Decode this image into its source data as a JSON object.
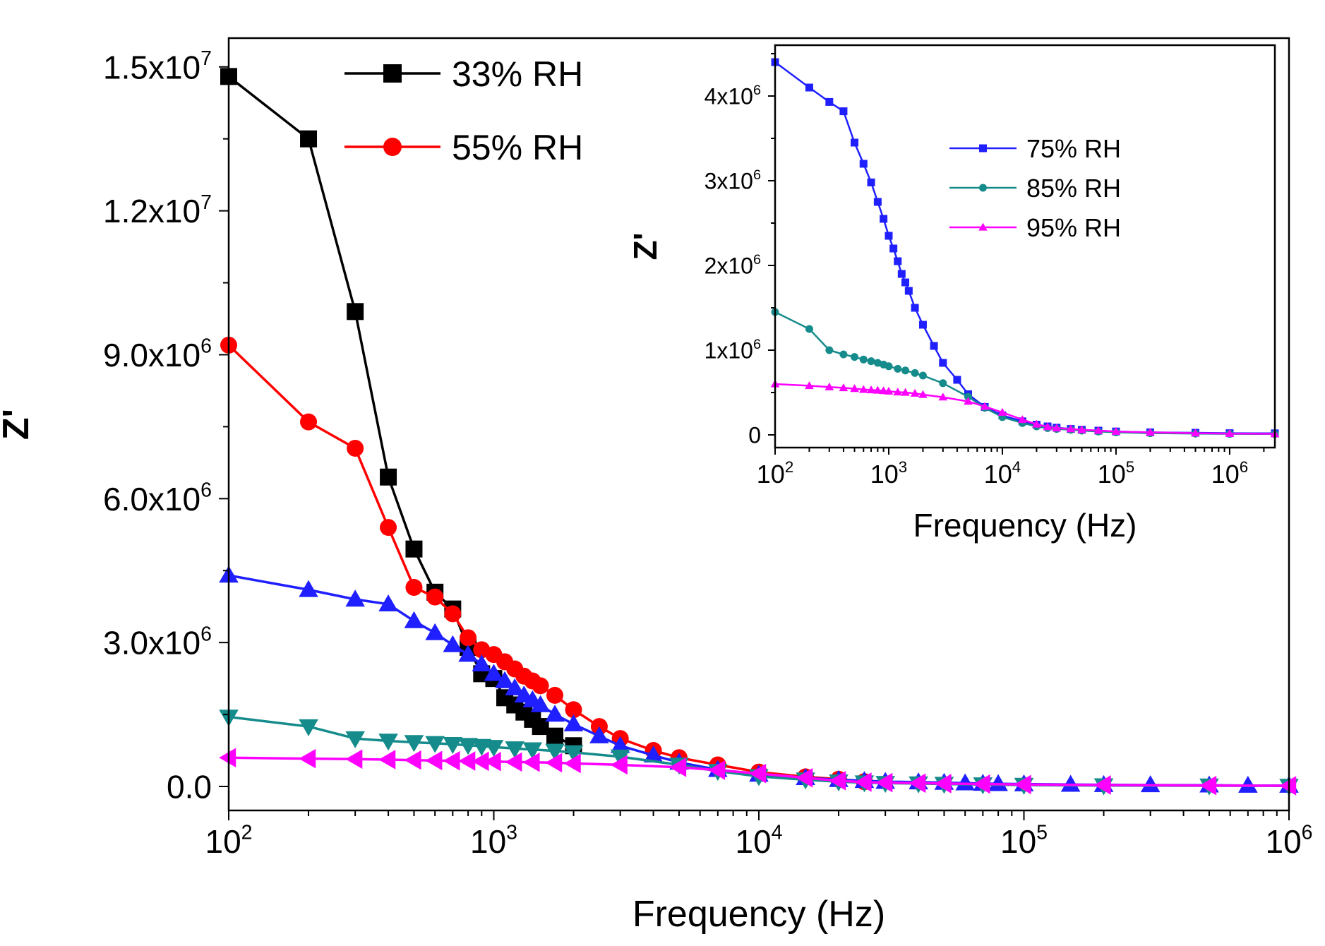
{
  "chart_data": [
    {
      "id": "main",
      "type": "line",
      "xscale": "log",
      "xlim": [
        100,
        1000000
      ],
      "ylim": [
        -500000,
        15600000
      ],
      "xlabel": "Frequency (Hz)",
      "ylabel": "Z'",
      "xticks": [
        {
          "value": 100,
          "base": "10",
          "exp": "2"
        },
        {
          "value": 1000,
          "base": "10",
          "exp": "3"
        },
        {
          "value": 10000,
          "base": "10",
          "exp": "4"
        },
        {
          "value": 100000,
          "base": "10",
          "exp": "5"
        },
        {
          "value": 1000000,
          "base": "10",
          "exp": "6"
        }
      ],
      "yticks": [
        {
          "value": 0,
          "mant": "0.0",
          "exp": ""
        },
        {
          "value": 3000000,
          "mant": "3.0x10",
          "exp": "6"
        },
        {
          "value": 6000000,
          "mant": "6.0x10",
          "exp": "6"
        },
        {
          "value": 9000000,
          "mant": "9.0x10",
          "exp": "6"
        },
        {
          "value": 12000000,
          "mant": "1.2x10",
          "exp": "7"
        },
        {
          "value": 15000000,
          "mant": "1.5x10",
          "exp": "7"
        }
      ],
      "legend": [
        {
          "label": "33% RH",
          "series": "33% RH"
        },
        {
          "label": "55% RH",
          "series": "55% RH"
        }
      ],
      "series": [
        {
          "name": "33% RH",
          "color": "#000000",
          "marker": "square",
          "x": [
            100,
            200,
            300,
            400,
            500,
            600,
            700,
            800,
            900,
            1000,
            1100,
            1200,
            1300,
            1400,
            1500,
            1700,
            2000
          ],
          "y": [
            14800000,
            13500000,
            9900000,
            6450000,
            4950000,
            4050000,
            3700000,
            2900000,
            2350000,
            2250000,
            1850000,
            1700000,
            1550000,
            1400000,
            1250000,
            1050000,
            850000
          ]
        },
        {
          "name": "55% RH",
          "color": "#ff0000",
          "marker": "circle",
          "x": [
            100,
            200,
            300,
            400,
            500,
            600,
            700,
            800,
            900,
            1000,
            1100,
            1200,
            1300,
            1400,
            1500,
            1700,
            2000,
            2500,
            3000,
            4000,
            5000,
            7000,
            10000,
            15000,
            20000,
            25000
          ],
          "y": [
            9200000,
            7600000,
            7050000,
            5400000,
            4150000,
            3950000,
            3600000,
            3100000,
            2850000,
            2750000,
            2600000,
            2450000,
            2300000,
            2200000,
            2100000,
            1900000,
            1600000,
            1250000,
            1000000,
            750000,
            600000,
            450000,
            300000,
            200000,
            150000,
            100000
          ]
        },
        {
          "name": "75% RH",
          "color": "#1f1fff",
          "marker": "triangle-up",
          "x": [
            100,
            200,
            300,
            400,
            500,
            600,
            700,
            800,
            900,
            1000,
            1100,
            1200,
            1300,
            1400,
            1500,
            1700,
            2000,
            2500,
            3000,
            4000,
            5000,
            7000,
            10000,
            15000,
            20000,
            25000,
            30000,
            40000,
            50000,
            60000,
            70000,
            80000,
            100000,
            150000,
            200000,
            300000,
            500000,
            700000,
            1000000
          ],
          "y": [
            4400000,
            4100000,
            3900000,
            3800000,
            3450000,
            3200000,
            2950000,
            2750000,
            2550000,
            2350000,
            2200000,
            2050000,
            1900000,
            1800000,
            1700000,
            1500000,
            1300000,
            1050000,
            850000,
            650000,
            500000,
            350000,
            250000,
            180000,
            140000,
            120000,
            100000,
            90000,
            80000,
            70000,
            60000,
            55000,
            50000,
            40000,
            35000,
            30000,
            25000,
            20000,
            20000
          ]
        },
        {
          "name": "85% RH",
          "color": "#158b8b",
          "marker": "triangle-down",
          "x": [
            100,
            200,
            300,
            400,
            500,
            600,
            700,
            800,
            900,
            1000,
            1200,
            1400,
            1700,
            2000,
            3000,
            5000,
            7000,
            10000,
            15000,
            20000,
            25000,
            30000,
            40000,
            50000,
            70000,
            100000,
            200000,
            500000,
            1000000
          ],
          "y": [
            1450000,
            1250000,
            1000000,
            950000,
            920000,
            900000,
            880000,
            860000,
            840000,
            820000,
            790000,
            770000,
            740000,
            710000,
            620000,
            450000,
            320000,
            210000,
            140000,
            100000,
            80000,
            70000,
            60000,
            50000,
            40000,
            30000,
            20000,
            15000,
            10000
          ]
        },
        {
          "name": "95% RH",
          "color": "#ff00ff",
          "marker": "triangle-left",
          "x": [
            100,
            200,
            300,
            400,
            500,
            600,
            700,
            800,
            900,
            1000,
            1200,
            1400,
            1700,
            2000,
            3000,
            5000,
            7000,
            10000,
            15000,
            20000,
            25000,
            30000,
            40000,
            50000,
            70000,
            100000,
            200000,
            500000,
            1000000
          ],
          "y": [
            600000,
            580000,
            570000,
            560000,
            550000,
            540000,
            535000,
            530000,
            525000,
            520000,
            510000,
            505000,
            495000,
            480000,
            450000,
            400000,
            340000,
            270000,
            180000,
            120000,
            90000,
            80000,
            70000,
            60000,
            50000,
            40000,
            30000,
            20000,
            15000
          ]
        }
      ]
    },
    {
      "id": "inset",
      "type": "line",
      "xscale": "log",
      "xlim": [
        100,
        2500000
      ],
      "ylim": [
        -150000,
        4600000
      ],
      "xlabel": "Frequency (Hz)",
      "ylabel": "Z'",
      "xticks": [
        {
          "value": 100,
          "base": "10",
          "exp": "2"
        },
        {
          "value": 1000,
          "base": "10",
          "exp": "3"
        },
        {
          "value": 10000,
          "base": "10",
          "exp": "4"
        },
        {
          "value": 100000,
          "base": "10",
          "exp": "5"
        },
        {
          "value": 1000000,
          "base": "10",
          "exp": "6"
        }
      ],
      "yticks": [
        {
          "value": 0,
          "mant": "0",
          "exp": ""
        },
        {
          "value": 1000000,
          "mant": "1x10",
          "exp": "6"
        },
        {
          "value": 2000000,
          "mant": "2x10",
          "exp": "6"
        },
        {
          "value": 3000000,
          "mant": "3x10",
          "exp": "6"
        },
        {
          "value": 4000000,
          "mant": "4x10",
          "exp": "6"
        }
      ],
      "legend": [
        {
          "label": "75% RH",
          "series": "75% RH"
        },
        {
          "label": "85% RH",
          "series": "85% RH"
        },
        {
          "label": "95% RH",
          "series": "95% RH"
        }
      ],
      "series": [
        {
          "name": "75% RH",
          "color": "#1f1fff",
          "marker": "square",
          "x": [
            100,
            200,
            300,
            400,
            500,
            600,
            700,
            800,
            900,
            1000,
            1100,
            1200,
            1300,
            1400,
            1500,
            1700,
            2000,
            2500,
            3000,
            4000,
            5000,
            7000,
            10000,
            15000,
            20000,
            25000,
            30000,
            40000,
            50000,
            70000,
            100000,
            200000,
            500000,
            1000000,
            2500000
          ],
          "y": [
            4400000,
            4100000,
            3930000,
            3820000,
            3450000,
            3200000,
            2980000,
            2750000,
            2550000,
            2350000,
            2200000,
            2050000,
            1900000,
            1800000,
            1700000,
            1500000,
            1300000,
            1050000,
            850000,
            650000,
            480000,
            330000,
            230000,
            160000,
            120000,
            100000,
            85000,
            70000,
            60000,
            50000,
            40000,
            30000,
            25000,
            20000,
            18000
          ]
        },
        {
          "name": "85% RH",
          "color": "#158b8b",
          "marker": "circle",
          "x": [
            100,
            200,
            300,
            400,
            500,
            600,
            700,
            800,
            900,
            1000,
            1200,
            1400,
            1700,
            2000,
            3000,
            5000,
            7000,
            10000,
            15000,
            20000,
            25000,
            30000,
            40000,
            50000,
            70000,
            100000,
            200000,
            500000,
            1000000,
            2500000
          ],
          "y": [
            1450000,
            1250000,
            1000000,
            950000,
            920000,
            890000,
            870000,
            850000,
            830000,
            810000,
            780000,
            760000,
            730000,
            700000,
            610000,
            450000,
            320000,
            210000,
            140000,
            100000,
            80000,
            70000,
            60000,
            50000,
            40000,
            30000,
            20000,
            15000,
            12000,
            10000
          ]
        },
        {
          "name": "95% RH",
          "color": "#ff00ff",
          "marker": "triangle-up",
          "x": [
            100,
            200,
            300,
            400,
            500,
            600,
            700,
            800,
            900,
            1000,
            1200,
            1400,
            1700,
            2000,
            3000,
            5000,
            7000,
            10000,
            15000,
            20000,
            25000,
            30000,
            40000,
            50000,
            70000,
            100000,
            200000,
            500000,
            1000000,
            2500000
          ],
          "y": [
            600000,
            580000,
            565000,
            555000,
            545000,
            535000,
            530000,
            525000,
            520000,
            515000,
            505000,
            500000,
            490000,
            475000,
            445000,
            395000,
            335000,
            265000,
            180000,
            125000,
            95000,
            80000,
            70000,
            60000,
            50000,
            40000,
            30000,
            20000,
            15000,
            12000
          ]
        }
      ]
    }
  ]
}
